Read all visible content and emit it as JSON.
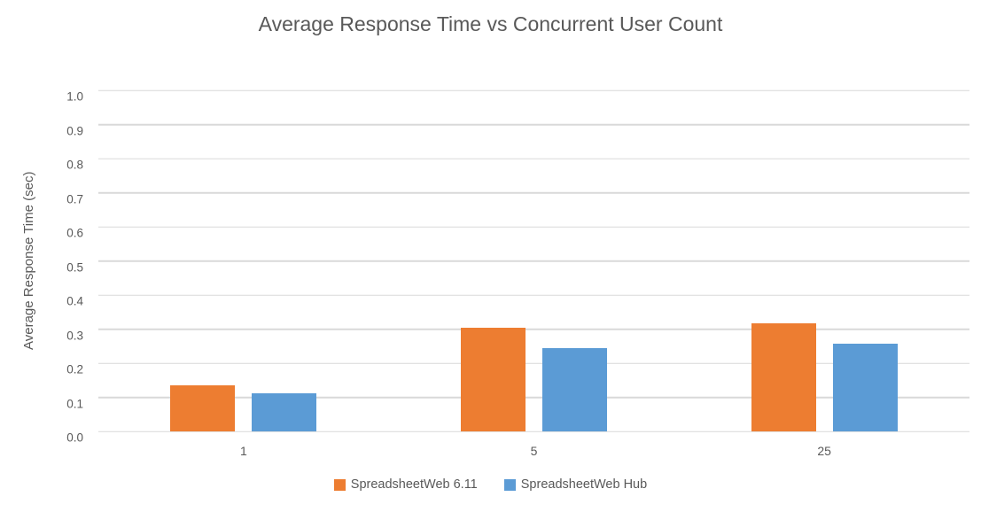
{
  "colors": {
    "series1": "#ED7D31",
    "series2": "#5B9BD5",
    "text": "#595959",
    "gridline": "#D9D9D9",
    "background": "#FFFFFF"
  },
  "chart_data": {
    "type": "bar",
    "title": "Average Response Time vs Concurrent User Count",
    "xlabel": "",
    "ylabel": "Average Response Time (sec)",
    "categories": [
      "1",
      "5",
      "25"
    ],
    "series": [
      {
        "name": "SpreadsheetWeb 6.11",
        "color": "#ED7D31",
        "values": [
          0.135,
          0.305,
          0.317
        ]
      },
      {
        "name": "SpreadsheetWeb Hub",
        "color": "#5B9BD5",
        "values": [
          0.113,
          0.245,
          0.257
        ]
      }
    ],
    "ylim": [
      0.0,
      1.0
    ],
    "ytick_step": 0.1,
    "yticks": [
      "0.0",
      "0.1",
      "0.2",
      "0.3",
      "0.4",
      "0.5",
      "0.6",
      "0.7",
      "0.8",
      "0.9",
      "1.0"
    ],
    "grid": true,
    "legend_position": "bottom"
  }
}
